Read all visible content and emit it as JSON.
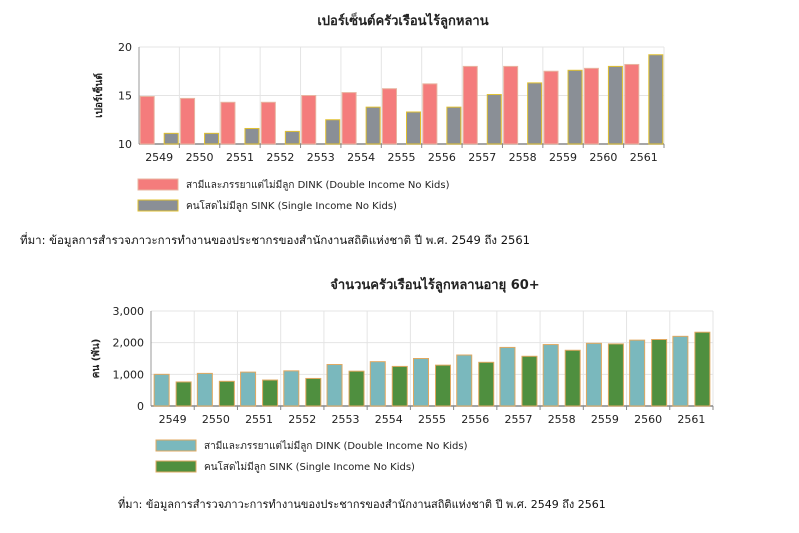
{
  "chart_data": [
    {
      "type": "bar",
      "title": "เปอร์เซ็นต์ครัวเรือนไร้ลูกหลาน",
      "ylabel": "เปอร์เซ็นต์",
      "xlabel": "",
      "ylim": [
        10,
        20
      ],
      "yticks": [
        "10",
        "15",
        "20"
      ],
      "grid": true,
      "legend_position": "bottom-left",
      "categories": [
        "2549",
        "2550",
        "2551",
        "2552",
        "2553",
        "2554",
        "2555",
        "2556",
        "2557",
        "2558",
        "2559",
        "2560",
        "2561"
      ],
      "series": [
        {
          "name": "สามีและภรรยาแต่ไม่มีลูก DINK (Double Income No Kids)",
          "color": "#f47c7c",
          "border": "#e8b4a0",
          "values": [
            14.9,
            14.7,
            14.3,
            14.3,
            15.0,
            15.3,
            15.7,
            16.2,
            18.0,
            18.0,
            17.5,
            17.8,
            18.2
          ]
        },
        {
          "name": "คนโสดไม่มีลูก SINK (Single Income No Kids)",
          "color": "#8a8f96",
          "border": "#e0c030",
          "values": [
            11.1,
            11.1,
            11.6,
            11.3,
            12.5,
            13.8,
            13.3,
            13.8,
            15.1,
            16.3,
            17.6,
            18.0,
            19.2
          ]
        }
      ]
    },
    {
      "type": "bar",
      "title": "จำนวนครัวเรือนไร้ลูกหลานอายุ 60+",
      "ylabel": "คน (พัน)",
      "xlabel": "",
      "ylim": [
        0,
        3000
      ],
      "yticks": [
        "0",
        "1,000",
        "2,000",
        "3,000"
      ],
      "grid": true,
      "legend_position": "bottom-left",
      "categories": [
        "2549",
        "2550",
        "2551",
        "2552",
        "2553",
        "2554",
        "2555",
        "2556",
        "2557",
        "2558",
        "2559",
        "2560",
        "2561"
      ],
      "series": [
        {
          "name": "สามีและภรรยาแต่ไม่มีลูก DINK (Double Income No Kids)",
          "color": "#7ab8bd",
          "border": "#e0a860",
          "values": [
            1000,
            1030,
            1070,
            1110,
            1310,
            1400,
            1500,
            1610,
            1850,
            1940,
            1980,
            2080,
            2200
          ]
        },
        {
          "name": "คนโสดไม่มีลูก SINK (Single Income No Kids)",
          "color": "#4f8f3f",
          "border": "#e0a860",
          "values": [
            760,
            780,
            820,
            870,
            1100,
            1250,
            1290,
            1380,
            1570,
            1760,
            1960,
            2100,
            2330
          ]
        }
      ]
    }
  ],
  "sources": [
    "ที่มา: ข้อมูลการสำรวจภาวะการทำงานของประชากรของสำนักงานสถิติแห่งชาติ ปี พ.ศ. 2549 ถึง 2561",
    "ที่มา: ข้อมูลการสำรวจภาวะการทำงานของประชากรของสำนักงานสถิติแห่งชาติ ปี พ.ศ. 2549 ถึง 2561"
  ]
}
